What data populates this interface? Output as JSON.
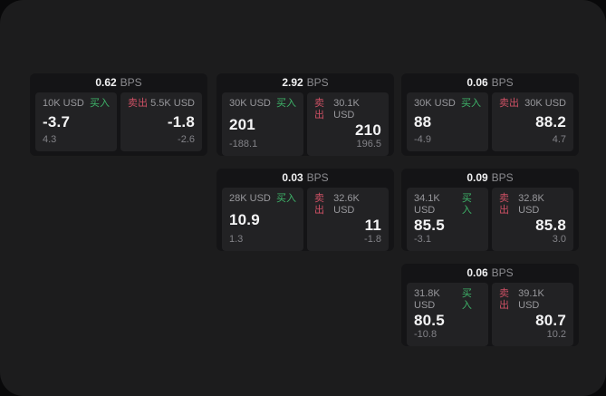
{
  "labels": {
    "bps_unit": "BPS",
    "buy": "买入",
    "sell": "卖出"
  },
  "colors": {
    "outer_background": "#09090a",
    "panel_background": "#1c1c1d",
    "card_background": "#141416",
    "tile_background": "#222224",
    "text_primary": "#f4f4f5",
    "text_muted": "#8d8d91",
    "buy_accent": "#3eb469",
    "sell_accent": "#cd5064"
  },
  "cards": [
    {
      "spread_bps": "0.62",
      "buy": {
        "size": "10K USD",
        "price": "-3.7",
        "delta": "4.3"
      },
      "sell": {
        "size": "5.5K USD",
        "price": "-1.8",
        "delta": "-2.6"
      }
    },
    {
      "spread_bps": "2.92",
      "buy": {
        "size": "30K USD",
        "price": "201",
        "delta": "-188.1"
      },
      "sell": {
        "size": "30.1K USD",
        "price": "210",
        "delta": "196.5"
      }
    },
    {
      "spread_bps": "0.03",
      "buy": {
        "size": "28K USD",
        "price": "10.9",
        "delta": "1.3"
      },
      "sell": {
        "size": "32.6K USD",
        "price": "11",
        "delta": "-1.8"
      }
    },
    {
      "spread_bps": "0.06",
      "buy": {
        "size": "30K USD",
        "price": "88",
        "delta": "-4.9"
      },
      "sell": {
        "size": "30K USD",
        "price": "88.2",
        "delta": "4.7"
      }
    },
    {
      "spread_bps": "0.09",
      "buy": {
        "size": "34.1K USD",
        "price": "85.5",
        "delta": "-3.1"
      },
      "sell": {
        "size": "32.8K USD",
        "price": "85.8",
        "delta": "3.0"
      }
    },
    {
      "spread_bps": "0.06",
      "buy": {
        "size": "31.8K USD",
        "price": "80.5",
        "delta": "-10.8"
      },
      "sell": {
        "size": "39.1K USD",
        "price": "80.7",
        "delta": "10.2"
      }
    }
  ]
}
